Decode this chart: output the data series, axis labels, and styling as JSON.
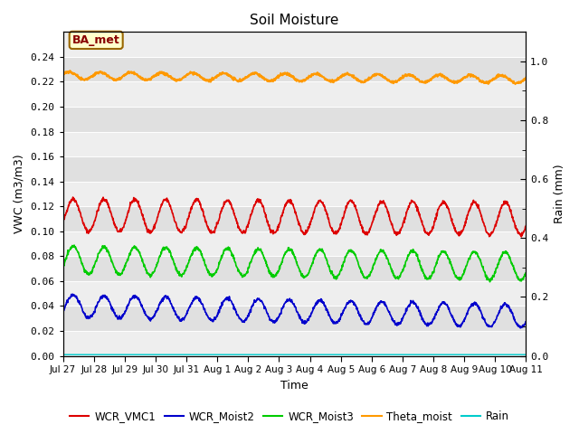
{
  "title": "Soil Moisture",
  "xlabel": "Time",
  "ylabel_left": "VWC (m3/m3)",
  "ylabel_right": "Rain (mm)",
  "ylim_left": [
    0.0,
    0.26
  ],
  "ylim_right": [
    0.0,
    1.1
  ],
  "yticks_left": [
    0.0,
    0.02,
    0.04,
    0.06,
    0.08,
    0.1,
    0.12,
    0.14,
    0.16,
    0.18,
    0.2,
    0.22,
    0.24
  ],
  "yticks_right_vals": [
    0.0,
    0.2,
    0.4,
    0.6,
    0.8,
    1.0
  ],
  "colors": {
    "WCR_VMC1": "#dd0000",
    "WCR_Moist2": "#0000cc",
    "WCR_Moist3": "#00cc00",
    "Theta_moist": "#ff9900",
    "Rain": "#00cccc"
  },
  "fig_bg": "#ffffff",
  "annotation_text": "BA_met",
  "annotation_bg": "#ffffcc",
  "annotation_border": "#996600",
  "annotation_text_color": "#880000",
  "legend_entries": [
    "WCR_VMC1",
    "WCR_Moist2",
    "WCR_Moist3",
    "Theta_moist",
    "Rain"
  ],
  "band_light": "#eeeeee",
  "band_dark": "#e0e0e0"
}
